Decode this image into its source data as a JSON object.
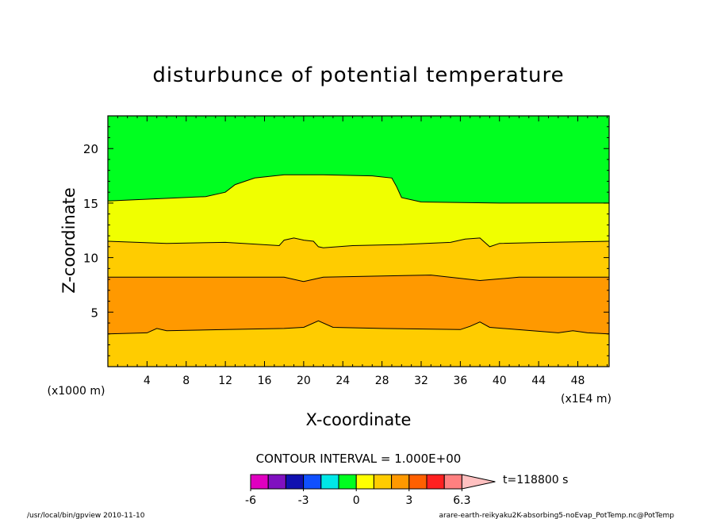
{
  "chart_data": {
    "type": "contour",
    "title": "disturbunce of potential temperature",
    "xlabel": "X-coordinate",
    "ylabel": "Z-coordinate",
    "x_unit": "(x1E4 m)",
    "y_unit": "(x1000 m)",
    "xlim": [
      0,
      51.2
    ],
    "ylim": [
      0,
      23
    ],
    "x_ticks": [
      "4",
      "8",
      "12",
      "16",
      "20",
      "24",
      "28",
      "32",
      "36",
      "40",
      "44",
      "48"
    ],
    "x_tick_values": [
      4,
      8,
      12,
      16,
      20,
      24,
      28,
      32,
      36,
      40,
      44,
      48
    ],
    "y_ticks": [
      "5",
      "10",
      "15",
      "20"
    ],
    "y_tick_values": [
      5,
      10,
      15,
      20
    ],
    "contour_interval": "CONTOUR INTERVAL = 1.000E+00",
    "time": "t=118800 s",
    "colorbar": {
      "labels": [
        "-6",
        "-3",
        "0",
        "3",
        "6.3"
      ],
      "colors": [
        "#e000c0",
        "#8010c0",
        "#1010b0",
        "#1050ff",
        "#00e8e8",
        "#00ff20",
        "#ffff00",
        "#ffcc00",
        "#ff9900",
        "#ff6000",
        "#ff2020",
        "#ff8080",
        "#ffc0c0"
      ]
    },
    "bands": [
      {
        "range": "2 to 3",
        "color": "#ffcc00",
        "bottom": [
          [
            0,
            0
          ],
          [
            51.2,
            0
          ]
        ]
      },
      {
        "range": "3 to 4",
        "color": "#ff9900",
        "bottom": [
          [
            0,
            3.0
          ],
          [
            4,
            3.1
          ],
          [
            5,
            3.5
          ],
          [
            6,
            3.3
          ],
          [
            12,
            3.4
          ],
          [
            18,
            3.5
          ],
          [
            20,
            3.6
          ],
          [
            21.5,
            4.2
          ],
          [
            23,
            3.6
          ],
          [
            28,
            3.5
          ],
          [
            36,
            3.4
          ],
          [
            37,
            3.7
          ],
          [
            38,
            4.1
          ],
          [
            39,
            3.6
          ],
          [
            46,
            3.1
          ],
          [
            47.5,
            3.3
          ],
          [
            49,
            3.1
          ],
          [
            51.2,
            3.0
          ]
        ]
      },
      {
        "range": "1 to 2",
        "color": "#ffcc00",
        "bottom": [
          [
            0,
            8.2
          ],
          [
            10,
            8.2
          ],
          [
            18,
            8.2
          ],
          [
            20,
            7.8
          ],
          [
            22,
            8.2
          ],
          [
            33,
            8.4
          ],
          [
            38,
            7.9
          ],
          [
            42,
            8.2
          ],
          [
            51.2,
            8.2
          ]
        ]
      },
      {
        "range": "0 to 1",
        "color": "#f0ff00",
        "bottom": [
          [
            0,
            11.5
          ],
          [
            6,
            11.3
          ],
          [
            12,
            11.4
          ],
          [
            17.5,
            11.1
          ],
          [
            18,
            11.6
          ],
          [
            19,
            11.8
          ],
          [
            20,
            11.6
          ],
          [
            21,
            11.5
          ],
          [
            21.5,
            11.0
          ],
          [
            22,
            10.9
          ],
          [
            25,
            11.1
          ],
          [
            30,
            11.2
          ],
          [
            35,
            11.4
          ],
          [
            36.5,
            11.7
          ],
          [
            38,
            11.8
          ],
          [
            39,
            11.0
          ],
          [
            40,
            11.3
          ],
          [
            45,
            11.4
          ],
          [
            51.2,
            11.5
          ]
        ]
      },
      {
        "range": "-1 to 0",
        "color": "#00ff20",
        "bottom": [
          [
            0,
            15.2
          ],
          [
            10,
            15.6
          ],
          [
            12,
            16.0
          ],
          [
            13,
            16.7
          ],
          [
            15,
            17.3
          ],
          [
            18,
            17.6
          ],
          [
            22,
            17.6
          ],
          [
            27,
            17.5
          ],
          [
            29,
            17.3
          ],
          [
            29.5,
            16.5
          ],
          [
            30,
            15.5
          ],
          [
            32,
            15.1
          ],
          [
            40,
            15.0
          ],
          [
            51.2,
            15.0
          ]
        ]
      }
    ]
  },
  "footer": {
    "left": "/usr/local/bin/gpview  2010-11-10",
    "right": "arare-earth-reikyaku2K-absorbing5-noEvap_PotTemp.nc@PotTemp"
  }
}
